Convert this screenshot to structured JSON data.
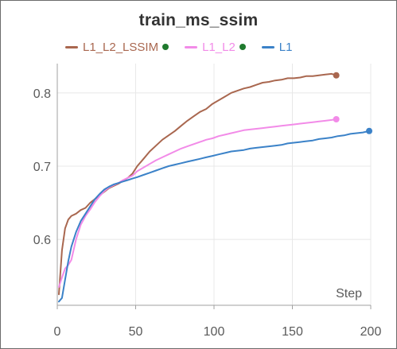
{
  "colors": {
    "L1_L2_LSSIM": "#a9674f",
    "L1_L2": "#f28be8",
    "L1": "#3b82c8",
    "status_dot": "#1f7a2e",
    "grid": "#e8e8e8",
    "axis": "#a0a0a0"
  },
  "chart_data": {
    "type": "line",
    "title": "train_ms_ssim",
    "xlabel": "Step",
    "ylabel": "",
    "xlim": [
      0,
      200
    ],
    "ylim": [
      0.51,
      0.84
    ],
    "x_ticks": [
      0,
      50,
      100,
      150,
      200
    ],
    "x_tick_labels": [
      "0",
      "50",
      "100",
      "150",
      "200"
    ],
    "y_ticks": [
      0.6,
      0.7,
      0.8
    ],
    "y_tick_labels": [
      "0.6",
      "0.7",
      "0.8"
    ],
    "grid": true,
    "legend_position": "top",
    "series": [
      {
        "name": "L1_L2_LSSIM",
        "color_key": "L1_L2_LSSIM",
        "status_dot": true,
        "x": [
          1,
          3,
          5,
          7,
          9,
          12,
          15,
          18,
          21,
          24,
          27,
          30,
          33,
          36,
          39,
          42,
          45,
          48,
          51,
          55,
          59,
          63,
          67,
          71,
          75,
          79,
          83,
          87,
          91,
          95,
          99,
          103,
          107,
          111,
          115,
          119,
          123,
          127,
          131,
          135,
          139,
          143,
          147,
          151,
          155,
          159,
          163,
          167,
          171,
          175,
          178
        ],
        "values": [
          0.525,
          0.585,
          0.615,
          0.627,
          0.632,
          0.635,
          0.64,
          0.643,
          0.65,
          0.655,
          0.66,
          0.665,
          0.67,
          0.673,
          0.676,
          0.68,
          0.684,
          0.69,
          0.7,
          0.71,
          0.72,
          0.728,
          0.736,
          0.742,
          0.748,
          0.755,
          0.762,
          0.768,
          0.774,
          0.778,
          0.785,
          0.79,
          0.795,
          0.8,
          0.803,
          0.806,
          0.808,
          0.811,
          0.814,
          0.815,
          0.817,
          0.818,
          0.82,
          0.82,
          0.821,
          0.823,
          0.823,
          0.824,
          0.825,
          0.826,
          0.824
        ]
      },
      {
        "name": "L1_L2",
        "color_key": "L1_L2",
        "status_dot": true,
        "x": [
          1,
          3,
          5,
          7,
          9,
          12,
          15,
          18,
          21,
          24,
          27,
          30,
          33,
          36,
          39,
          42,
          45,
          48,
          51,
          55,
          59,
          63,
          67,
          71,
          75,
          79,
          83,
          87,
          91,
          95,
          99,
          103,
          107,
          111,
          115,
          119,
          123,
          127,
          131,
          135,
          139,
          143,
          147,
          151,
          155,
          159,
          163,
          167,
          171,
          175,
          178
        ],
        "values": [
          0.535,
          0.548,
          0.56,
          0.565,
          0.572,
          0.6,
          0.62,
          0.632,
          0.641,
          0.651,
          0.659,
          0.666,
          0.671,
          0.674,
          0.677,
          0.681,
          0.684,
          0.687,
          0.693,
          0.698,
          0.703,
          0.708,
          0.712,
          0.716,
          0.72,
          0.724,
          0.727,
          0.73,
          0.733,
          0.736,
          0.738,
          0.741,
          0.743,
          0.745,
          0.747,
          0.749,
          0.75,
          0.751,
          0.752,
          0.753,
          0.754,
          0.755,
          0.756,
          0.757,
          0.758,
          0.759,
          0.76,
          0.761,
          0.762,
          0.763,
          0.764
        ]
      },
      {
        "name": "L1",
        "color_key": "L1",
        "status_dot": false,
        "x": [
          1,
          3,
          5,
          7,
          9,
          12,
          15,
          18,
          21,
          24,
          27,
          30,
          33,
          36,
          39,
          42,
          45,
          48,
          51,
          55,
          59,
          63,
          67,
          71,
          75,
          79,
          83,
          87,
          91,
          95,
          99,
          103,
          107,
          111,
          115,
          119,
          123,
          127,
          131,
          135,
          139,
          143,
          147,
          151,
          155,
          159,
          163,
          167,
          171,
          175,
          179,
          183,
          187,
          191,
          195,
          199
        ],
        "values": [
          0.515,
          0.52,
          0.545,
          0.57,
          0.59,
          0.61,
          0.625,
          0.635,
          0.645,
          0.655,
          0.662,
          0.668,
          0.672,
          0.675,
          0.677,
          0.679,
          0.681,
          0.683,
          0.685,
          0.688,
          0.691,
          0.694,
          0.697,
          0.7,
          0.702,
          0.704,
          0.706,
          0.708,
          0.71,
          0.712,
          0.714,
          0.716,
          0.718,
          0.72,
          0.721,
          0.722,
          0.724,
          0.725,
          0.726,
          0.727,
          0.728,
          0.729,
          0.731,
          0.732,
          0.733,
          0.734,
          0.735,
          0.737,
          0.738,
          0.739,
          0.741,
          0.742,
          0.744,
          0.745,
          0.746,
          0.748
        ]
      }
    ]
  }
}
